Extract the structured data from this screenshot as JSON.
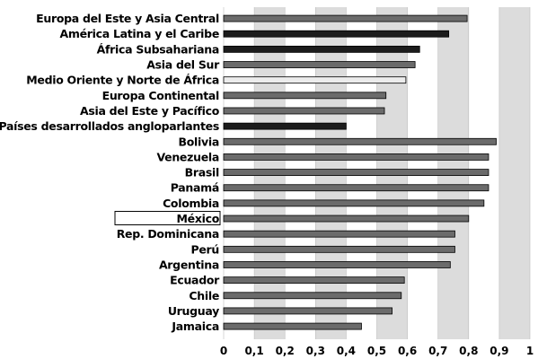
{
  "chart_data": {
    "type": "bar",
    "orientation": "horizontal",
    "title": "",
    "xlabel": "",
    "ylabel": "",
    "xlim": [
      0,
      1
    ],
    "x_ticks": [
      "0",
      "0,1",
      "0,2",
      "0,3",
      "0,4",
      "0,5",
      "0,6",
      "0,7",
      "0,8",
      "0,9",
      "1"
    ],
    "grid": "vertical lines, alternating shaded bands",
    "categories": [
      "Europa del Este y Asia Central",
      "América Latina y el Caribe",
      "África Subsahariana",
      "Asia del Sur",
      "Medio Oriente y Norte de África",
      "Europa Continental",
      "Asia del Este y Pacífico",
      "Países desarrollados angloparlantes",
      "Bolivia",
      "Venezuela",
      "Brasil",
      "Panamá",
      "Colombia",
      "México",
      "Rep. Dominicana",
      "Perú",
      "Argentina",
      "Ecuador",
      "Chile",
      "Uruguay",
      "Jamaica"
    ],
    "values": [
      0.795,
      0.735,
      0.64,
      0.625,
      0.595,
      0.53,
      0.525,
      0.4,
      0.89,
      0.865,
      0.865,
      0.865,
      0.85,
      0.8,
      0.755,
      0.755,
      0.74,
      0.59,
      0.58,
      0.55,
      0.45
    ],
    "highlighted_category": "México",
    "colors": {
      "bar_dark": "#1c1c1c",
      "bar_gray": "#6b6b6b",
      "bar_light": "#ececec",
      "band": "#dcdcdc",
      "grid": "#ffffff"
    },
    "bar_styles": [
      "gray",
      "dark",
      "dark",
      "gray",
      "light",
      "gray",
      "gray",
      "dark",
      "gray",
      "gray",
      "gray",
      "gray",
      "gray",
      "gray",
      "gray",
      "gray",
      "gray",
      "gray",
      "gray",
      "gray",
      "gray"
    ]
  }
}
